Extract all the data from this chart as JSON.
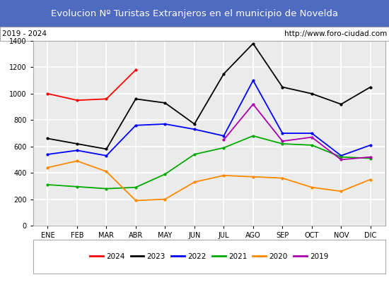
{
  "title": "Evolucion Nº Turistas Extranjeros en el municipio de Novelda",
  "subtitle_left": "2019 - 2024",
  "subtitle_right": "http://www.foro-ciudad.com",
  "months": [
    "ENE",
    "FEB",
    "MAR",
    "ABR",
    "MAY",
    "JUN",
    "JUL",
    "AGO",
    "SEP",
    "OCT",
    "NOV",
    "DIC"
  ],
  "ylim": [
    0,
    1400
  ],
  "yticks": [
    0,
    200,
    400,
    600,
    800,
    1000,
    1200,
    1400
  ],
  "series": {
    "2024": {
      "color": "#ff0000",
      "data": [
        1000,
        950,
        960,
        1180,
        null,
        null,
        null,
        null,
        null,
        null,
        null,
        null
      ]
    },
    "2023": {
      "color": "#000000",
      "data": [
        660,
        620,
        580,
        960,
        930,
        770,
        1150,
        1380,
        1050,
        1000,
        920,
        1050
      ]
    },
    "2022": {
      "color": "#0000ff",
      "data": [
        540,
        570,
        530,
        760,
        770,
        730,
        680,
        1100,
        700,
        700,
        530,
        610
      ]
    },
    "2021": {
      "color": "#00aa00",
      "data": [
        310,
        295,
        280,
        290,
        390,
        540,
        590,
        680,
        620,
        610,
        520,
        510
      ]
    },
    "2020": {
      "color": "#ff8800",
      "data": [
        440,
        490,
        410,
        190,
        200,
        330,
        380,
        370,
        360,
        290,
        260,
        350
      ]
    },
    "2019": {
      "color": "#aa00aa",
      "data": [
        null,
        null,
        null,
        null,
        null,
        null,
        650,
        920,
        640,
        670,
        500,
        520
      ]
    }
  },
  "title_bg_color": "#4f6bbf",
  "title_text_color": "white",
  "plot_bg_color": "#ebebeb",
  "grid_color": "white",
  "border_color": "#aaaaaa",
  "legend_order": [
    "2024",
    "2023",
    "2022",
    "2021",
    "2020",
    "2019"
  ],
  "title_fontsize": 9.5,
  "subtitle_fontsize": 7.5,
  "tick_fontsize": 7,
  "legend_fontsize": 7.5
}
